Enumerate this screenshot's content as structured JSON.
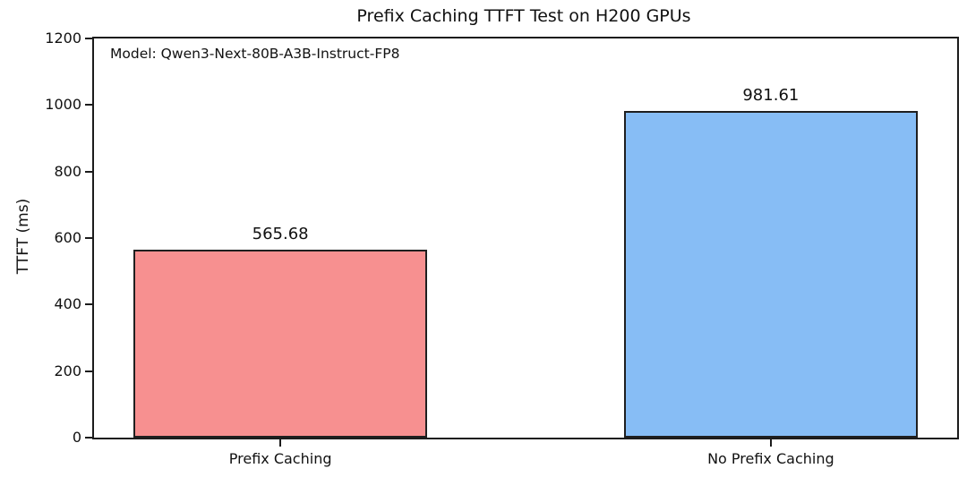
{
  "chart_data": {
    "type": "bar",
    "title": "Prefix Caching TTFT Test on H200 GPUs",
    "annotation": "Model: Qwen3-Next-80B-A3B-Instruct-FP8",
    "categories": [
      "Prefix Caching",
      "No Prefix Caching"
    ],
    "values": [
      565.68,
      981.61
    ],
    "value_labels": [
      "565.68",
      "981.61"
    ],
    "bar_colors": [
      "#F79090",
      "#87BDF5"
    ],
    "bar_edge_color": "#1f1f1f",
    "xlabel": "",
    "ylabel": "TTFT (ms)",
    "ylim": [
      0,
      1200
    ],
    "yticks": [
      0,
      200,
      400,
      600,
      800,
      1000,
      1200
    ],
    "grid": "off",
    "legend": "none",
    "background_color": "#ffffff",
    "spine_color": "#1c1c1c"
  }
}
